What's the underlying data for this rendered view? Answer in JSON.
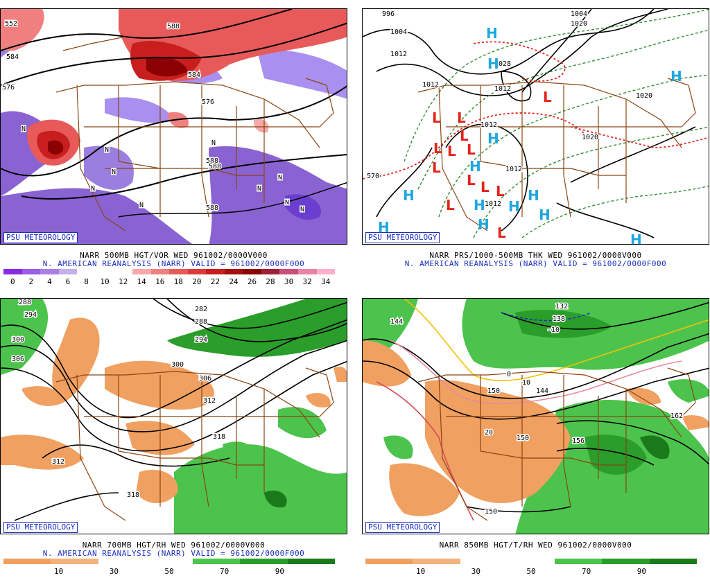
{
  "brand": "PSU METEOROLOGY",
  "panels": {
    "p500": {
      "caption1": "NARR 500MB HGT/VOR WED 961002/0000V000",
      "caption2": "N. AMERICAN REANALYSIS (NARR) VALID = 961002/0000F000",
      "colorbar": [
        "0",
        "2",
        "4",
        "6",
        "8",
        "10",
        "12",
        "14",
        "16",
        "18",
        "20",
        "22",
        "24",
        "26",
        "28",
        "30",
        "32",
        "34"
      ],
      "contour_labels": [
        "552",
        "584",
        "576",
        "576",
        "588",
        "588",
        "584",
        "588",
        "588"
      ],
      "N": "N"
    },
    "pthk": {
      "caption1": "NARR PRS/1000-500MB THK WED 961002/0000V000",
      "caption2": "N. AMERICAN REANALYSIS (NARR) VALID = 961002/0000F000",
      "contour_labels": [
        "996",
        "1004",
        "1004",
        "1012",
        "1012",
        "1020",
        "1028",
        "1012",
        "1012",
        "1012",
        "1012",
        "1020",
        "1020",
        "570"
      ],
      "H": "H",
      "L": "L"
    },
    "p700": {
      "caption1": "NARR 700MB HGT/RH WED 961002/0000V000",
      "caption2": "N. AMERICAN REANALYSIS (NARR) VALID = 961002/0000F000",
      "colorbar": [
        "10",
        "30",
        "50",
        "70",
        "90"
      ],
      "contour_labels": [
        "288",
        "294",
        "300",
        "306",
        "282",
        "288",
        "294",
        "300",
        "306",
        "312",
        "318",
        "312",
        "318"
      ]
    },
    "p850": {
      "caption1": "NARR 850MB HGT/T/RH WED 961002/0000V000",
      "colorbar": [
        "10",
        "30",
        "50",
        "70",
        "90"
      ],
      "contour_labels": [
        "144",
        "132",
        "138",
        "-10",
        "0",
        "10",
        "150",
        "144",
        "20",
        "150",
        "156",
        "162",
        "150"
      ]
    }
  },
  "colors": {
    "vor": [
      "#8a2be2",
      "#9b5de5",
      "#a97fe6",
      "#c3b0ec",
      "#ffffff",
      "#ffffff",
      "#ffffff",
      "#f7a8a8",
      "#f08080",
      "#e85a5a",
      "#dc3b3b",
      "#c81e1e",
      "#a50f0f",
      "#8b0000",
      "#a0203a",
      "#c8507a",
      "#e884a8",
      "#ffb0c8"
    ],
    "rh": [
      "#f0a060",
      "#f4b27c",
      "#ffffff",
      "#ffffff",
      "#4cc34c",
      "#2a9d2a",
      "#1b7a1b"
    ],
    "state_lines": "#8b4513",
    "contour": "#000000",
    "high": "#1ea7df",
    "low": "#e2231a",
    "brand": "#1a2fbf"
  }
}
